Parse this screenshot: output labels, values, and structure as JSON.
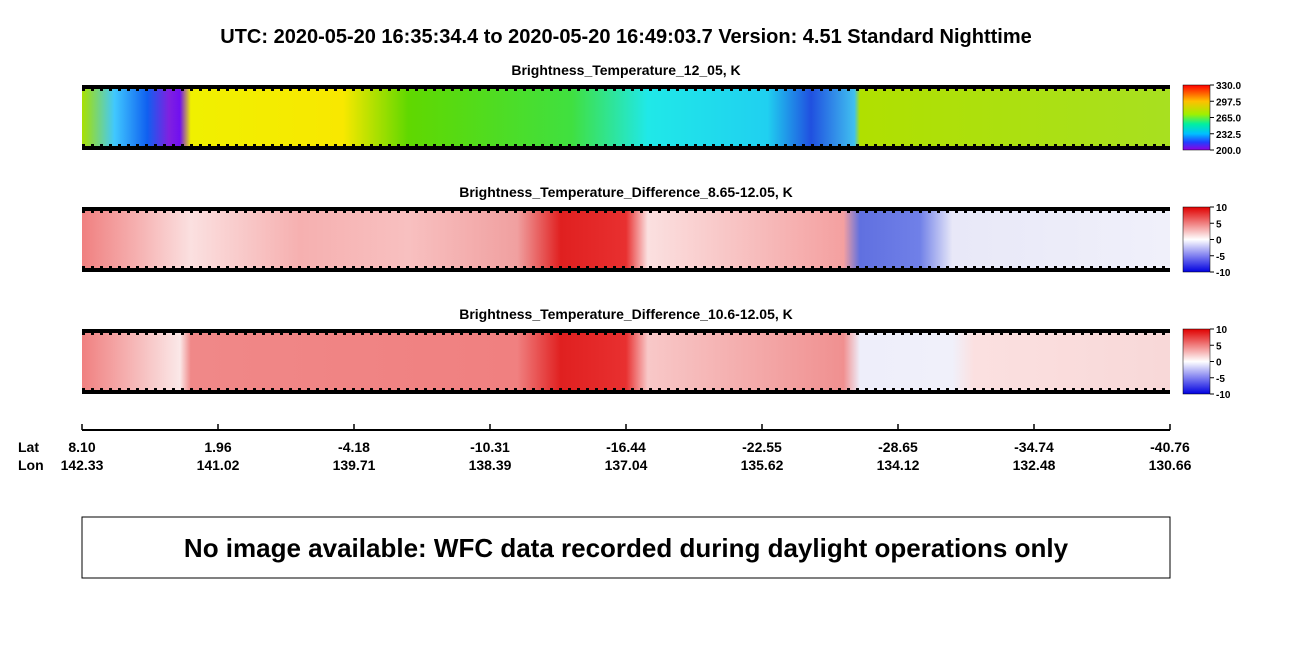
{
  "header": {
    "title": "UTC:  2020-05-20   16:35:34.4  to  2020-05-20   16:49:03.7    Version: 4.51  Standard Nighttime"
  },
  "panels": [
    {
      "title": "Brightness_Temperature_12_05, K",
      "colorbar": [
        "330.0",
        "297.5",
        "265.0",
        "232.5",
        "200.0"
      ]
    },
    {
      "title": "Brightness_Temperature_Difference_8.65-12.05, K",
      "colorbar": [
        "10",
        "5",
        "0",
        "-5",
        "-10"
      ]
    },
    {
      "title": "Brightness_Temperature_Difference_10.6-12.05, K",
      "colorbar": [
        "10",
        "5",
        "0",
        "-5",
        "-10"
      ]
    }
  ],
  "axis": {
    "lat_label": "Lat",
    "lon_label": "Lon",
    "lat": [
      "8.10",
      "1.96",
      "-4.18",
      "-10.31",
      "-16.44",
      "-22.55",
      "-28.65",
      "-34.74",
      "-40.76"
    ],
    "lon": [
      "142.33",
      "141.02",
      "139.71",
      "138.39",
      "137.04",
      "135.62",
      "134.12",
      "132.48",
      "130.66"
    ]
  },
  "footer": {
    "message": "No image available: WFC data recorded during daylight operations only"
  }
}
